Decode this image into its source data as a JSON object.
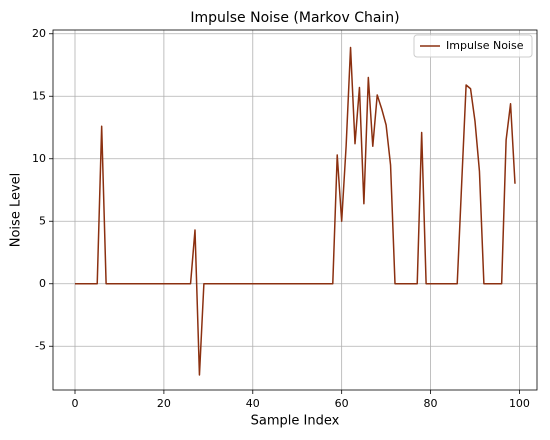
{
  "chart_data": {
    "type": "line",
    "title": "Impulse Noise (Markov Chain)",
    "xlabel": "Sample Index",
    "ylabel": "Noise Level",
    "x": [
      0,
      1,
      2,
      3,
      4,
      5,
      6,
      7,
      8,
      9,
      10,
      11,
      12,
      13,
      14,
      15,
      16,
      17,
      18,
      19,
      20,
      21,
      22,
      23,
      24,
      25,
      26,
      27,
      28,
      29,
      30,
      31,
      32,
      33,
      34,
      35,
      36,
      37,
      38,
      39,
      40,
      41,
      42,
      43,
      44,
      45,
      46,
      47,
      48,
      49,
      50,
      51,
      52,
      53,
      54,
      55,
      56,
      57,
      58,
      59,
      60,
      61,
      62,
      63,
      64,
      65,
      66,
      67,
      68,
      69,
      70,
      71,
      72,
      73,
      74,
      75,
      76,
      77,
      78,
      79,
      80,
      81,
      82,
      83,
      84,
      85,
      86,
      87,
      88,
      89,
      90,
      91,
      92,
      93,
      94,
      95,
      96,
      97,
      98,
      99
    ],
    "series": [
      {
        "name": "Impulse Noise",
        "color": "#8b3010",
        "values": [
          0,
          0,
          0,
          0,
          0,
          0,
          12.6,
          0,
          0,
          0,
          0,
          0,
          0,
          0,
          0,
          0,
          0,
          0,
          0,
          0,
          0,
          0,
          0,
          0,
          0,
          0,
          0,
          4.3,
          -7.3,
          0,
          0,
          0,
          0,
          0,
          0,
          0,
          0,
          0,
          0,
          0,
          0,
          0,
          0,
          0,
          0,
          0,
          0,
          0,
          0,
          0,
          0,
          0,
          0,
          0,
          0,
          0,
          0,
          0,
          0,
          10.3,
          5,
          11,
          18.9,
          11.2,
          15.7,
          6.4,
          16.5,
          11,
          15.1,
          14,
          12.7,
          9.5,
          0,
          0,
          0,
          0,
          0,
          0,
          12.1,
          0,
          0,
          0,
          0,
          0,
          0,
          0,
          0,
          8,
          15.9,
          15.6,
          13,
          9,
          0,
          0,
          0,
          0,
          0,
          11.5,
          14.4,
          8
        ]
      }
    ],
    "xlim": [
      -4.95,
      103.95
    ],
    "ylim": [
      -8.5,
      20.3
    ],
    "xticks": [
      0,
      20,
      40,
      60,
      80,
      100
    ],
    "yticks": [
      -5,
      0,
      5,
      10,
      15,
      20
    ],
    "grid": true,
    "legend": "upper right"
  }
}
